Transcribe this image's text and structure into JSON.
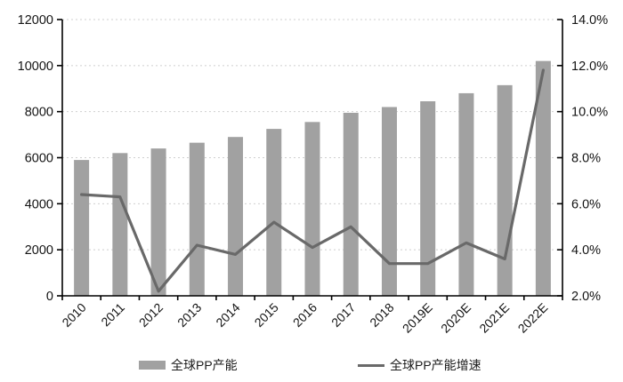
{
  "chart_data": {
    "type": "bar+line",
    "title": "",
    "categories": [
      "2010",
      "2011",
      "2012",
      "2013",
      "2014",
      "2015",
      "2016",
      "2017",
      "2018",
      "2019E",
      "2020E",
      "2021E",
      "2022E"
    ],
    "series": [
      {
        "name": "全球PP产能",
        "type": "bar",
        "axis": "left",
        "color": "#a1a1a1",
        "values": [
          5900,
          6200,
          6400,
          6650,
          6900,
          7250,
          7550,
          7950,
          8200,
          8450,
          8800,
          9150,
          10200
        ]
      },
      {
        "name": "全球PP产能增速",
        "type": "line",
        "axis": "right",
        "color": "#696969",
        "values": [
          6.4,
          6.3,
          2.2,
          4.2,
          3.8,
          5.2,
          4.1,
          5.0,
          3.4,
          3.4,
          4.3,
          3.6,
          11.8
        ]
      }
    ],
    "left_axis": {
      "min": 0,
      "max": 12000,
      "step": 2000,
      "tick_labels": [
        "0",
        "2000",
        "4000",
        "6000",
        "8000",
        "10000",
        "12000"
      ]
    },
    "right_axis": {
      "min": 2.0,
      "max": 14.0,
      "step": 2.0,
      "tick_labels": [
        "2.0%",
        "4.0%",
        "6.0%",
        "8.0%",
        "10.0%",
        "12.0%",
        "14.0%"
      ]
    },
    "grid": "horizontal-dashed",
    "legend_position": "bottom",
    "colors": {
      "bar": "#a1a1a1",
      "line": "#696969",
      "grid": "#cfcfcf",
      "axis": "#000000",
      "text": "#141414",
      "background": "#ffffff"
    }
  }
}
